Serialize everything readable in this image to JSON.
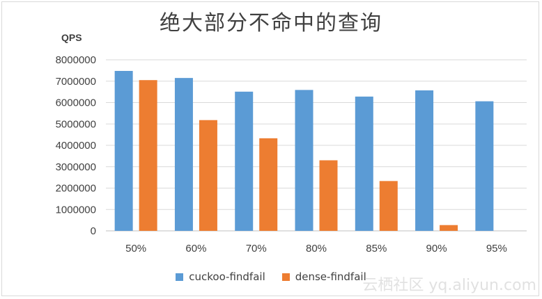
{
  "chart_data": {
    "type": "bar",
    "title": "绝大部分不命中的查询",
    "ylabel": "QPS",
    "xlabel": "",
    "ylim": [
      0,
      8000000
    ],
    "yticks": [
      "0",
      "1000000",
      "2000000",
      "3000000",
      "4000000",
      "5000000",
      "6000000",
      "7000000",
      "8000000"
    ],
    "categories": [
      "50%",
      "60%",
      "70%",
      "80%",
      "85%",
      "90%",
      "95%"
    ],
    "series": [
      {
        "name": "cuckoo-findfail",
        "color": "#5b9bd5",
        "values": [
          7480000,
          7150000,
          6510000,
          6590000,
          6280000,
          6570000,
          6060000
        ]
      },
      {
        "name": "dense-findfail",
        "color": "#ed7d31",
        "values": [
          7050000,
          5180000,
          4330000,
          3300000,
          2330000,
          270000,
          null
        ]
      }
    ],
    "grid": true,
    "legend_position": "bottom"
  },
  "watermark": "云栖社区 yq.aliyun.com"
}
